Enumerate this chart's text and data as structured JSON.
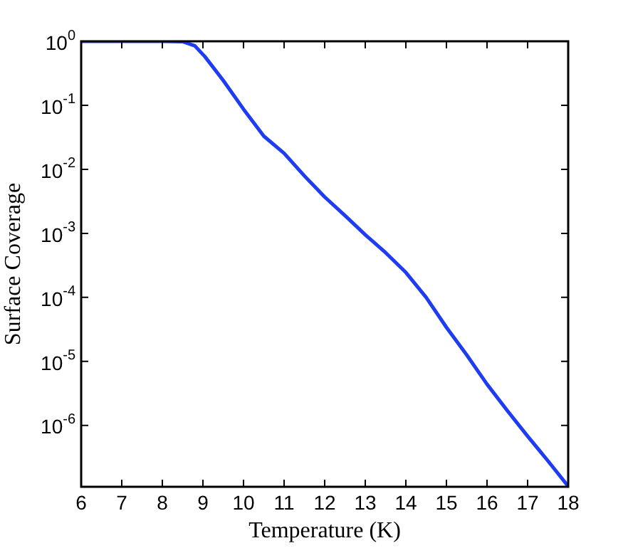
{
  "chart_data": {
    "type": "line",
    "xlabel": "Temperature (K)",
    "ylabel": "Surface Coverage",
    "x": [
      6,
      7,
      8,
      8.5,
      8.8,
      9.05,
      9.5,
      10,
      10.5,
      11,
      11.5,
      12,
      12.5,
      13,
      13.5,
      14,
      14.5,
      15,
      15.5,
      16,
      16.5,
      17,
      17.5,
      18
    ],
    "series": [
      {
        "color": "#1f3cf5",
        "values": [
          1,
          1,
          1,
          0.99,
          0.85,
          0.575,
          0.245,
          0.087,
          0.033,
          0.0178,
          0.0079,
          0.0037,
          0.0019,
          0.00095,
          0.0005,
          0.000245,
          0.0001,
          3.4e-05,
          1.26e-05,
          4.4e-06,
          1.7e-06,
          6.8e-07,
          2.8e-07,
          1.12e-07
        ]
      }
    ],
    "log": "y",
    "xlim": [
      6,
      18
    ],
    "ylim": [
      1.1e-07,
      1
    ],
    "xticks": [
      6,
      7,
      8,
      9,
      10,
      11,
      12,
      13,
      14,
      15,
      16,
      17,
      18
    ],
    "yticks": [
      {
        "value": 1,
        "label": "10$^{0}$"
      },
      {
        "value": 0.1,
        "label": "10$^{-1}$"
      },
      {
        "value": 0.01,
        "label": "10$^{-2}$"
      },
      {
        "value": 0.001,
        "label": "10$^{-3}$"
      },
      {
        "value": 0.0001,
        "label": "10$^{-4}$"
      },
      {
        "value": 1e-05,
        "label": "10$^{-5}$"
      },
      {
        "value": 1e-06,
        "label": "10$^{-6}$"
      }
    ],
    "grid": false,
    "legend": false,
    "marker": "none",
    "line_style": "solid"
  }
}
